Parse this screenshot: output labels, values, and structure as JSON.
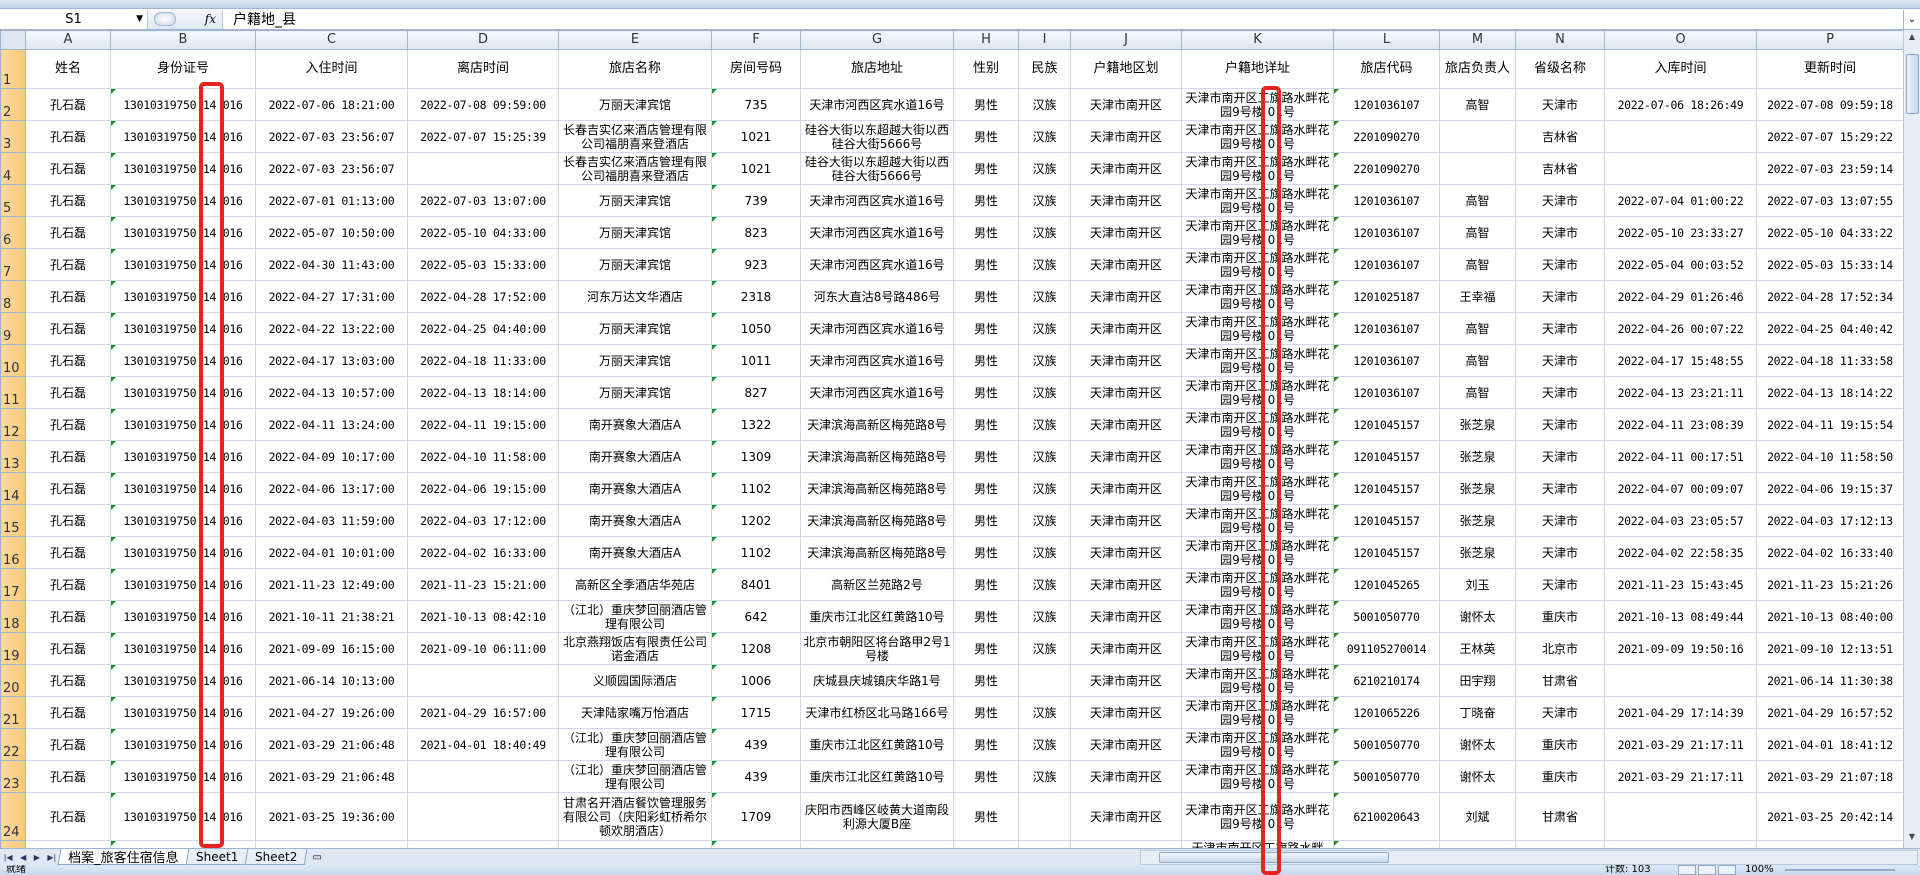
{
  "formula_bar": {
    "name_box": "S1",
    "fx_label": "fx",
    "formula": "户籍地_县"
  },
  "columns": [
    "A",
    "B",
    "C",
    "D",
    "E",
    "F",
    "G",
    "H",
    "I",
    "J",
    "K",
    "L",
    "M",
    "N",
    "O",
    "P"
  ],
  "header_row": [
    "姓名",
    "身份证号",
    "入住时间",
    "离店时间",
    "旅店名称",
    "房间号码",
    "旅店地址",
    "性别",
    "民族",
    "户籍地区划",
    "户籍地详址",
    "旅店代码",
    "旅店负责人",
    "省级名称",
    "入库时间",
    "更新时间"
  ],
  "rows": [
    [
      "孔石磊",
      "13010319750 14 016",
      "2022-07-06 18:21:00",
      "2022-07-08 09:59:00",
      "万丽天津宾馆",
      "735",
      "天津市河西区宾水道16号",
      "男性",
      "汉族",
      "天津市南开区",
      "天津市南开区工旗路水畔花园9号楼 01号",
      "1201036107",
      "高智",
      "天津市",
      "2022-07-06 18:26:49",
      "2022-07-08 09:59:18"
    ],
    [
      "孔石磊",
      "13010319750 14 016",
      "2022-07-03 23:56:07",
      "2022-07-07 15:25:39",
      "长春吉实亿来酒店管理有限公司福朋喜来登酒店",
      "1021",
      "硅谷大街以东超越大街以西硅谷大街5666号",
      "男性",
      "汉族",
      "天津市南开区",
      "天津市南开区工旗路水畔花园9号楼 01号",
      "2201090270",
      "",
      "吉林省",
      "",
      "2022-07-07 15:29:22"
    ],
    [
      "孔石磊",
      "13010319750 14 016",
      "2022-07-03 23:56:07",
      "",
      "长春吉实亿来酒店管理有限公司福朋喜来登酒店",
      "1021",
      "硅谷大街以东超越大街以西硅谷大街5666号",
      "男性",
      "汉族",
      "天津市南开区",
      "天津市南开区工旗路水畔花园9号楼 01号",
      "2201090270",
      "",
      "吉林省",
      "",
      "2022-07-03 23:59:14"
    ],
    [
      "孔石磊",
      "13010319750 14 016",
      "2022-07-01 01:13:00",
      "2022-07-03 13:07:00",
      "万丽天津宾馆",
      "739",
      "天津市河西区宾水道16号",
      "男性",
      "汉族",
      "天津市南开区",
      "天津市南开区工旗路水畔花园9号楼 01号",
      "1201036107",
      "高智",
      "天津市",
      "2022-07-04 01:00:22",
      "2022-07-03 13:07:55"
    ],
    [
      "孔石磊",
      "13010319750 14 016",
      "2022-05-07 10:50:00",
      "2022-05-10 04:33:00",
      "万丽天津宾馆",
      "823",
      "天津市河西区宾水道16号",
      "男性",
      "汉族",
      "天津市南开区",
      "天津市南开区工旗路水畔花园9号楼 01号",
      "1201036107",
      "高智",
      "天津市",
      "2022-05-10 23:33:27",
      "2022-05-10 04:33:22"
    ],
    [
      "孔石磊",
      "13010319750 14 016",
      "2022-04-30 11:43:00",
      "2022-05-03 15:33:00",
      "万丽天津宾馆",
      "923",
      "天津市河西区宾水道16号",
      "男性",
      "汉族",
      "天津市南开区",
      "天津市南开区工旗路水畔花园9号楼 01号",
      "1201036107",
      "高智",
      "天津市",
      "2022-05-04 00:03:52",
      "2022-05-03 15:33:14"
    ],
    [
      "孔石磊",
      "13010319750 14 016",
      "2022-04-27 17:31:00",
      "2022-04-28 17:52:00",
      "河东万达文华酒店",
      "2318",
      "河东大直沽8号路486号",
      "男性",
      "汉族",
      "天津市南开区",
      "天津市南开区工旗路水畔花园9号楼 01号",
      "1201025187",
      "王幸福",
      "天津市",
      "2022-04-29 01:26:46",
      "2022-04-28 17:52:34"
    ],
    [
      "孔石磊",
      "13010319750 14 016",
      "2022-04-22 13:22:00",
      "2022-04-25 04:40:00",
      "万丽天津宾馆",
      "1050",
      "天津市河西区宾水道16号",
      "男性",
      "汉族",
      "天津市南开区",
      "天津市南开区工旗路水畔花园9号楼 01号",
      "1201036107",
      "高智",
      "天津市",
      "2022-04-26 00:07:22",
      "2022-04-25 04:40:42"
    ],
    [
      "孔石磊",
      "13010319750 14 016",
      "2022-04-17 13:03:00",
      "2022-04-18 11:33:00",
      "万丽天津宾馆",
      "1011",
      "天津市河西区宾水道16号",
      "男性",
      "汉族",
      "天津市南开区",
      "天津市南开区工旗路水畔花园9号楼 01号",
      "1201036107",
      "高智",
      "天津市",
      "2022-04-17 15:48:55",
      "2022-04-18 11:33:58"
    ],
    [
      "孔石磊",
      "13010319750 14 016",
      "2022-04-13 10:57:00",
      "2022-04-13 18:14:00",
      "万丽天津宾馆",
      "827",
      "天津市河西区宾水道16号",
      "男性",
      "汉族",
      "天津市南开区",
      "天津市南开区工旗路水畔花园9号楼 01号",
      "1201036107",
      "高智",
      "天津市",
      "2022-04-13 23:21:11",
      "2022-04-13 18:14:22"
    ],
    [
      "孔石磊",
      "13010319750 14 016",
      "2022-04-11 13:24:00",
      "2022-04-11 19:15:00",
      "南开赛象大酒店A",
      "1322",
      "天津滨海高新区梅苑路8号",
      "男性",
      "汉族",
      "天津市南开区",
      "天津市南开区工旗路水畔花园9号楼 01号",
      "1201045157",
      "张芝泉",
      "天津市",
      "2022-04-11 23:08:39",
      "2022-04-11 19:15:54"
    ],
    [
      "孔石磊",
      "13010319750 14 016",
      "2022-04-09 10:17:00",
      "2022-04-10 11:58:00",
      "南开赛象大酒店A",
      "1309",
      "天津滨海高新区梅苑路8号",
      "男性",
      "汉族",
      "天津市南开区",
      "天津市南开区工旗路水畔花园9号楼 01号",
      "1201045157",
      "张芝泉",
      "天津市",
      "2022-04-11 00:17:51",
      "2022-04-10 11:58:50"
    ],
    [
      "孔石磊",
      "13010319750 14 016",
      "2022-04-06 13:17:00",
      "2022-04-06 19:15:00",
      "南开赛象大酒店A",
      "1102",
      "天津滨海高新区梅苑路8号",
      "男性",
      "汉族",
      "天津市南开区",
      "天津市南开区工旗路水畔花园9号楼 01号",
      "1201045157",
      "张芝泉",
      "天津市",
      "2022-04-07 00:09:07",
      "2022-04-06 19:15:37"
    ],
    [
      "孔石磊",
      "13010319750 14 016",
      "2022-04-03 11:59:00",
      "2022-04-03 17:12:00",
      "南开赛象大酒店A",
      "1202",
      "天津滨海高新区梅苑路8号",
      "男性",
      "汉族",
      "天津市南开区",
      "天津市南开区工旗路水畔花园9号楼 01号",
      "1201045157",
      "张芝泉",
      "天津市",
      "2022-04-03 23:05:57",
      "2022-04-03 17:12:13"
    ],
    [
      "孔石磊",
      "13010319750 14 016",
      "2022-04-01 10:01:00",
      "2022-04-02 16:33:00",
      "南开赛象大酒店A",
      "1102",
      "天津滨海高新区梅苑路8号",
      "男性",
      "汉族",
      "天津市南开区",
      "天津市南开区工旗路水畔花园9号楼 01号",
      "1201045157",
      "张芝泉",
      "天津市",
      "2022-04-02 22:58:35",
      "2022-04-02 16:33:40"
    ],
    [
      "孔石磊",
      "13010319750 14 016",
      "2021-11-23 12:49:00",
      "2021-11-23 15:21:00",
      "高新区全季酒店华苑店",
      "8401",
      "高新区兰苑路2号",
      "男性",
      "汉族",
      "天津市南开区",
      "天津市南开区工旗路水畔花园9号楼 01号",
      "1201045265",
      "刘玉",
      "天津市",
      "2021-11-23 15:43:45",
      "2021-11-23 15:21:26"
    ],
    [
      "孔石磊",
      "13010319750 14 016",
      "2021-10-11 21:38:21",
      "2021-10-13 08:42:10",
      "（江北）重庆梦回丽酒店管理有限公司",
      "642",
      "重庆市江北区红黄路10号",
      "男性",
      "汉族",
      "天津市南开区",
      "天津市南开区工旗路水畔花园9号楼 01号",
      "5001050770",
      "谢怀太",
      "重庆市",
      "2021-10-13 08:49:44",
      "2021-10-13 08:40:00"
    ],
    [
      "孔石磊",
      "13010319750 14 016",
      "2021-09-09 16:15:00",
      "2021-09-10 06:11:00",
      "北京燕翔饭店有限责任公司诺金酒店",
      "1208",
      "北京市朝阳区将台路甲2号1号楼",
      "男性",
      "汉族",
      "天津市南开区",
      "天津市南开区工旗路水畔花园9号楼 01号",
      "091105270014",
      "王林英",
      "北京市",
      "2021-09-09 19:50:16",
      "2021-09-10 12:13:51"
    ],
    [
      "孔石磊",
      "13010319750 14 016",
      "2021-06-14 10:13:00",
      "",
      "义顺园国际酒店",
      "1006",
      "庆城县庆城镇庆华路1号",
      "男性",
      "",
      "天津市南开区",
      "天津市南开区工旗路水畔花园9号楼 01号",
      "6210210174",
      "田宇翔",
      "甘肃省",
      "",
      "2021-06-14 11:30:38"
    ],
    [
      "孔石磊",
      "13010319750 14 016",
      "2021-04-27 19:26:00",
      "2021-04-29 16:57:00",
      "天津陆家嘴万怡酒店",
      "1715",
      "天津市红桥区北马路166号",
      "男性",
      "汉族",
      "天津市南开区",
      "天津市南开区工旗路水畔花园9号楼 01号",
      "1201065226",
      "丁晓奋",
      "天津市",
      "2021-04-29 17:14:39",
      "2021-04-29 16:57:52"
    ],
    [
      "孔石磊",
      "13010319750 14 016",
      "2021-03-29 21:06:48",
      "2021-04-01 18:40:49",
      "（江北）重庆梦回丽酒店管理有限公司",
      "439",
      "重庆市江北区红黄路10号",
      "男性",
      "汉族",
      "天津市南开区",
      "天津市南开区工旗路水畔花园9号楼 01号",
      "5001050770",
      "谢怀太",
      "重庆市",
      "2021-03-29 21:17:11",
      "2021-04-01 18:41:12"
    ],
    [
      "孔石磊",
      "13010319750 14 016",
      "2021-03-29 21:06:48",
      "",
      "（江北）重庆梦回丽酒店管理有限公司",
      "439",
      "重庆市江北区红黄路10号",
      "男性",
      "汉族",
      "天津市南开区",
      "天津市南开区工旗路水畔花园9号楼 01号",
      "5001050770",
      "谢怀太",
      "重庆市",
      "2021-03-29 21:17:11",
      "2021-03-29 21:07:18"
    ],
    [
      "孔石磊",
      "13010319750 14 016",
      "2021-03-25 19:36:00",
      "",
      "甘肃名开酒店餐饮管理服务有限公司（庆阳彩虹桥希尔顿欢朋酒店）",
      "1709",
      "庆阳市西峰区岐黄大道南段利源大厦B座",
      "男性",
      "",
      "天津市南开区",
      "天津市南开区工旗路水畔花园9号楼 01号",
      "6210020643",
      "刘斌",
      "甘肃省",
      "",
      "2021-03-25 20:42:14"
    ]
  ],
  "partial_row": {
    "K": "天津市南开区工旗路水畔"
  },
  "sheet_tabs": [
    "档案_旅客住宿信息",
    "Sheet1",
    "Sheet2"
  ],
  "active_sheet": "档案_旅客住宿信息",
  "status_bar": {
    "ready": "就绪",
    "count": "计数: 103",
    "zoom": "100%"
  },
  "colors": {
    "annotation": "#e8231f",
    "row_header": "#f8c97a",
    "text_indicator": "#1f8f2b"
  }
}
